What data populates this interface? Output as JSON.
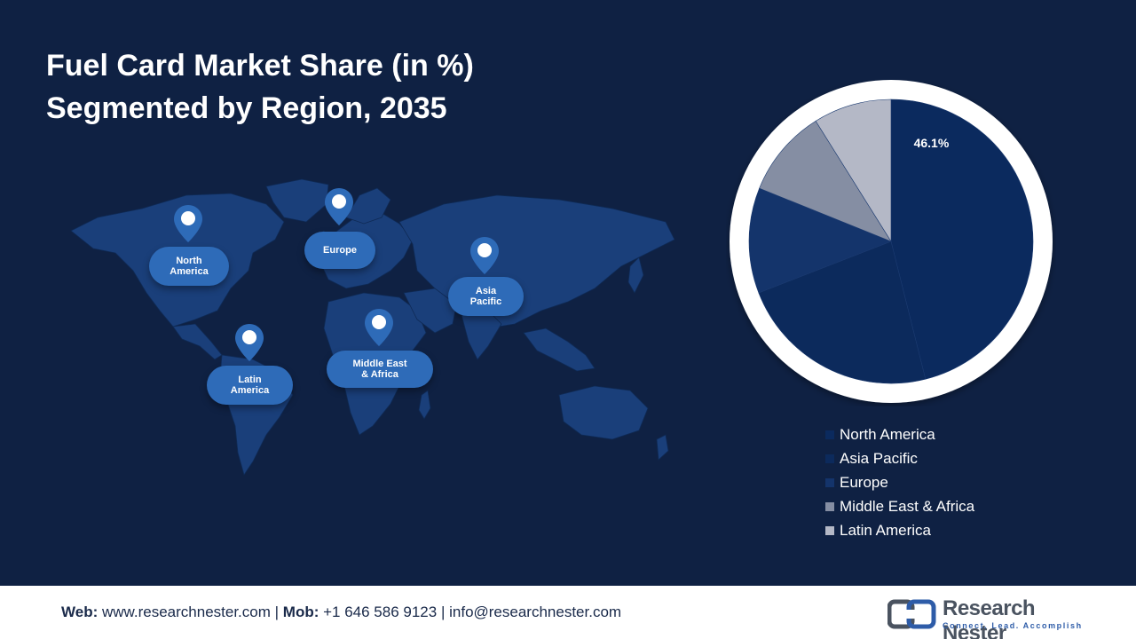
{
  "title": {
    "line1": "Fuel Card Market Share (in %)",
    "line2": "Segmented by Region, 2035"
  },
  "map": {
    "labels": {
      "north_america": "North\nAmerica",
      "europe": "Europe",
      "asia_pacific": "Asia\nPacific",
      "latin_america": "Latin\nAmerica",
      "mea": "Middle East\n& Africa"
    }
  },
  "chart_data": {
    "type": "pie",
    "title": "Fuel Card Market Share (in %) Segmented by Region, 2035",
    "slices": [
      {
        "name": "North America",
        "value": 46.1,
        "color": "#0b2a5e",
        "label": "46.1%"
      },
      {
        "name": "Asia Pacific",
        "value": 23.0,
        "color": "#0c2a5c",
        "label": ""
      },
      {
        "name": "Europe",
        "value": 12.0,
        "color": "#14346b",
        "label": ""
      },
      {
        "name": "Middle East & Africa",
        "value": 10.0,
        "color": "#858ea3",
        "label": ""
      },
      {
        "name": "Latin America",
        "value": 8.9,
        "color": "#b4b8c6",
        "label": ""
      }
    ],
    "legend_position": "bottom-right"
  },
  "footer": {
    "web_label": "Web:",
    "web": "www.researchnester.com",
    "mob_label": "Mob:",
    "mob": "+1 646 586 9123",
    "email": "info@researchnester.com",
    "separator": "|",
    "brand_name": "Research Nester",
    "brand_tagline": "Connect. Lead. Accomplish"
  },
  "colors": {
    "background": "#0f2143",
    "map_land": "#1a3f7a",
    "label_fill": "#2e6bb8",
    "pin": "#2e6bb8"
  }
}
